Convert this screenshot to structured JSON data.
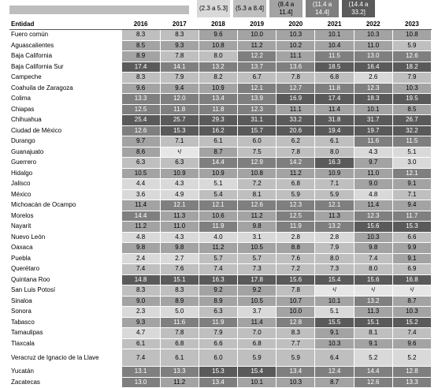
{
  "legend": [
    {
      "label": "(2.3 a 5.3]",
      "color": "#d9d9d9"
    },
    {
      "label": "(5.3 a 8.4]",
      "color": "#bfbfbf"
    },
    {
      "label": "(8.4 a 11.4]",
      "color": "#a3a3a3"
    },
    {
      "label": "(11.4 a 14.4]",
      "color": "#7f7f7f"
    },
    {
      "label": "(14.4 a 33.2]",
      "color": "#5a5a5a"
    }
  ],
  "table": {
    "header": [
      "Entidad",
      "2016",
      "2017",
      "2018",
      "2019",
      "2020",
      "2021",
      "2022",
      "2023"
    ],
    "rows": [
      [
        "Fuero común",
        "8.3",
        "8.3",
        "9.6",
        "10.0",
        "10.3",
        "10.1",
        "10.3",
        "10.8"
      ],
      [
        "Aguascalientes",
        "8.5",
        "9.3",
        "10.8",
        "11.2",
        "10.2",
        "10.4",
        "11.0",
        "5.9"
      ],
      [
        "Baja California",
        "8.9",
        "7.8",
        "8.0",
        "12.2",
        "11.1",
        "11.5",
        "13.0",
        "12.6"
      ],
      [
        "Baja California Sur",
        "17.4",
        "14.1",
        "13.2",
        "13.7",
        "13.6",
        "18.5",
        "16.4",
        "18.2"
      ],
      [
        "Campeche",
        "8.3",
        "7.9",
        "8.2",
        "6.7",
        "7.8",
        "6.8",
        "2.6",
        "7.9"
      ],
      [
        "Coahuila de Zaragoza",
        "9.6",
        "9.4",
        "10.9",
        "12.1",
        "12.7",
        "11.8",
        "12.3",
        "10.3"
      ],
      [
        "Colima",
        "13.3",
        "12.0",
        "13.4",
        "13.9",
        "16.9",
        "17.4",
        "18.3",
        "19.5"
      ],
      [
        "Chiapas",
        "12.5",
        "11.8",
        "11.8",
        "12.3",
        "11.1",
        "11.4",
        "10.1",
        "8.5"
      ],
      [
        "Chihuahua",
        "25.4",
        "25.7",
        "29.3",
        "31.1",
        "33.2",
        "31.8",
        "31.7",
        "26.7"
      ],
      [
        "Ciudad de México",
        "12.6",
        "15.3",
        "16.2",
        "15.7",
        "20.6",
        "19.4",
        "19.7",
        "32.2"
      ],
      [
        "Durango",
        "9.7",
        "7.1",
        "6.1",
        "6.0",
        "6.2",
        "6.1",
        "11.6",
        "11.5"
      ],
      [
        "Guanajuato",
        "8.6",
        "¹/",
        "8.7",
        "7.5",
        "7.8",
        "8.0",
        "4.3",
        "5.1"
      ],
      [
        "Guerrero",
        "6.3",
        "6.3",
        "14.4",
        "12.9",
        "14.2",
        "16.3",
        "9.7",
        "3.0"
      ],
      [
        "Hidalgo",
        "10.5",
        "10.9",
        "10.9",
        "10.8",
        "11.2",
        "10.9",
        "11.0",
        "12.1"
      ],
      [
        "Jalisco",
        "4.4",
        "4.3",
        "5.1",
        "7.2",
        "6.8",
        "7.1",
        "9.0",
        "9.1"
      ],
      [
        "México",
        "3.6",
        "4.9",
        "5.4",
        "8.1",
        "5.9",
        "5.9",
        "4.8",
        "7.1"
      ],
      [
        "Michoacán de Ocampo",
        "11.4",
        "12.1",
        "12.1",
        "12.6",
        "12.3",
        "12.1",
        "11.4",
        "9.4"
      ],
      [
        "Morelos",
        "14.4",
        "11.3",
        "10.6",
        "11.2",
        "12.5",
        "11.3",
        "12.3",
        "11.7"
      ],
      [
        "Nayarit",
        "11.2",
        "11.0",
        "11.9",
        "9.8",
        "11.9",
        "13.2",
        "15.6",
        "15.3"
      ],
      [
        "Nuevo León",
        "4.8",
        "4.3",
        "4.0",
        "3.1",
        "2.8",
        "2.8",
        "10.3",
        "6.6"
      ],
      [
        "Oaxaca",
        "9.8",
        "9.8",
        "11.2",
        "10.5",
        "8.8",
        "7.9",
        "9.8",
        "9.9"
      ],
      [
        "Puebla",
        "2.4",
        "2.7",
        "5.7",
        "5.7",
        "7.6",
        "8.0",
        "7.4",
        "9.1"
      ],
      [
        "Querétaro",
        "7.4",
        "7.6",
        "7.4",
        "7.3",
        "7.2",
        "7.3",
        "8.0",
        "6.9"
      ],
      [
        "Quintana Roo",
        "14.8",
        "15.1",
        "16.3",
        "17.8",
        "15.6",
        "15.4",
        "15.6",
        "16.8"
      ],
      [
        "San Luis Potosí",
        "8.3",
        "8.3",
        "9.2",
        "9.2",
        "7.8",
        "¹/",
        "¹/",
        "¹/"
      ],
      [
        "Sinaloa",
        "9.0",
        "8.9",
        "8.9",
        "10.5",
        "10.7",
        "10.1",
        "13.2",
        "8.7"
      ],
      [
        "Sonora",
        "2.3",
        "5.0",
        "6.3",
        "3.7",
        "10.0",
        "5.1",
        "11.3",
        "10.3"
      ],
      [
        "Tabasco",
        "9.3",
        "11.6",
        "11.9",
        "11.4",
        "12.8",
        "15.5",
        "15.1",
        "15.2"
      ],
      [
        "Tamaulipas",
        "4.7",
        "7.8",
        "7.9",
        "7.0",
        "8.3",
        "9.1",
        "8.1",
        "7.4"
      ],
      [
        "Tlaxcala",
        "6.1",
        "6.8",
        "6.6",
        "6.8",
        "7.7",
        "10.3",
        "9.1",
        "9.6"
      ],
      [
        "Veracruz de Ignacio de la Llave",
        "7.4",
        "6.1",
        "6.0",
        "5.9",
        "5.9",
        "6.4",
        "5.2",
        "5.2"
      ],
      [
        "Yucatán",
        "13.1",
        "13.3",
        "15.3",
        "15.4",
        "13.4",
        "12.4",
        "14.4",
        "12.8"
      ],
      [
        "Zacatecas",
        "13.0",
        "11.2",
        "13.4",
        "10.1",
        "10.3",
        "8.7",
        "12.6",
        "13.3"
      ]
    ]
  }
}
